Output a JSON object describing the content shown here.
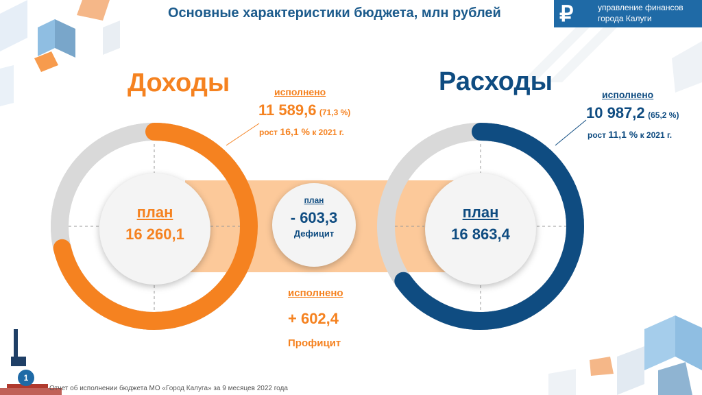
{
  "header": {
    "title": "Основные характеристики бюджета, млн рублей",
    "logo_icon": "₽",
    "logo_line1": "управление финансов",
    "logo_line2": "города Калуги"
  },
  "colors": {
    "income": "#f58220",
    "expenses": "#0f4c81",
    "band": "#fcc99a",
    "ring_track": "#d9d9d9"
  },
  "income": {
    "heading": "Доходы",
    "executed_label": "исполнено",
    "executed_value": "11 589,6",
    "executed_percent": "(71,3 %)",
    "executed_fraction": 0.713,
    "growth_prefix": "рост",
    "growth_value": "16,1 %",
    "growth_suffix": "к 2021 г.",
    "plan_label": "план",
    "plan_value": "16 260,1"
  },
  "expenses": {
    "heading": "Расходы",
    "executed_label": "исполнено",
    "executed_value": "10 987,2",
    "executed_percent": "(65,2 %)",
    "executed_fraction": 0.652,
    "growth_prefix": "рост",
    "growth_value": "11,1 %",
    "growth_suffix": "к 2021 г.",
    "plan_label": "план",
    "plan_value": "16 863,4"
  },
  "deficit": {
    "plan_label": "план",
    "value": "- 603,3",
    "label": "Дефицит"
  },
  "surplus": {
    "executed_label": "исполнено",
    "value": "+ 602,4",
    "label": "Профицит"
  },
  "footer": {
    "page_number": "1",
    "text": "Отчет об исполнении бюджета МО «Город Калуга» за 9 месяцев 2022 года"
  }
}
